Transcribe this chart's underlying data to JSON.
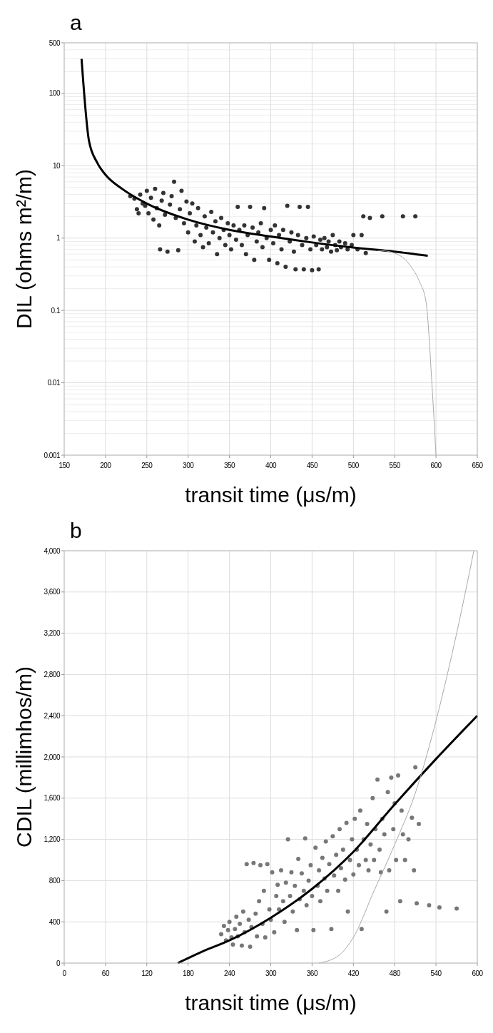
{
  "chart_data": [
    {
      "type": "scatter",
      "title": "a",
      "xlabel": "transit time (μs/m)",
      "ylabel": "DIL (ohms m²/m)",
      "log": "y",
      "grid": true,
      "xlim": [
        150,
        650
      ],
      "xticks": [
        150,
        200,
        250,
        300,
        350,
        400,
        450,
        500,
        550,
        600,
        650
      ],
      "ylim": [
        0.001,
        500
      ],
      "yticks": [
        0.001,
        0.01,
        0.1,
        1,
        10,
        100,
        500
      ],
      "series": [
        {
          "type": "scatter",
          "color": "#333333",
          "marker": "circle",
          "x": [
            230,
            235,
            238,
            240,
            242,
            245,
            248,
            250,
            252,
            255,
            258,
            260,
            262,
            265,
            266,
            268,
            270,
            272,
            275,
            278,
            280,
            283,
            285,
            288,
            290,
            292,
            295,
            298,
            300,
            302,
            305,
            308,
            310,
            312,
            315,
            318,
            320,
            322,
            325,
            328,
            330,
            333,
            335,
            338,
            340,
            343,
            345,
            348,
            350,
            352,
            355,
            358,
            360,
            362,
            365,
            368,
            370,
            372,
            375,
            378,
            380,
            383,
            385,
            388,
            390,
            392,
            395,
            398,
            400,
            403,
            405,
            408,
            410,
            413,
            415,
            418,
            420,
            423,
            425,
            428,
            430,
            433,
            435,
            438,
            440,
            443,
            445,
            448,
            450,
            452,
            455,
            458,
            460,
            462,
            465,
            468,
            470,
            473,
            475,
            478,
            480,
            483,
            485,
            490,
            493,
            498,
            500,
            505,
            510,
            512,
            515,
            520,
            535,
            560,
            575
          ],
          "values": [
            3.8,
            3.5,
            2.5,
            2.2,
            4,
            3,
            2.8,
            4.5,
            2.2,
            3.6,
            1.8,
            4.8,
            2.6,
            1.5,
            0.7,
            3.3,
            4.2,
            2.1,
            0.65,
            2.9,
            3.8,
            6,
            1.9,
            0.68,
            2.5,
            4.5,
            1.6,
            3.2,
            1.2,
            2.2,
            3,
            0.9,
            1.5,
            2.6,
            1.1,
            0.75,
            2,
            1.4,
            0.85,
            2.3,
            1.2,
            1.7,
            0.6,
            1,
            1.9,
            1.3,
            0.8,
            1.6,
            1.1,
            0.7,
            1.5,
            0.95,
            2.7,
            1.3,
            0.8,
            1.5,
            0.6,
            1.1,
            2.7,
            1.4,
            0.5,
            0.9,
            1.2,
            1.6,
            0.75,
            2.6,
            1,
            0.5,
            1.3,
            0.85,
            1.5,
            0.45,
            1.1,
            0.7,
            1.3,
            0.4,
            2.8,
            0.9,
            1.2,
            0.65,
            0.37,
            1.1,
            2.7,
            0.8,
            0.37,
            1,
            2.7,
            0.7,
            0.36,
            1.05,
            0.8,
            0.37,
            0.95,
            0.7,
            1,
            0.75,
            0.9,
            0.65,
            1.1,
            0.8,
            0.68,
            0.9,
            0.75,
            0.85,
            0.7,
            0.8,
            1.1,
            0.7,
            1.1,
            2,
            0.62,
            1.9,
            2,
            2,
            2
          ]
        },
        {
          "type": "line",
          "color": "#000000",
          "x": [
            171,
            180,
            190,
            200,
            220,
            250,
            300,
            350,
            400,
            450,
            500,
            550,
            590
          ],
          "values": [
            300,
            22,
            11,
            7.5,
            4.8,
            3,
            1.8,
            1.3,
            1.05,
            0.87,
            0.74,
            0.65,
            0.57
          ]
        },
        {
          "type": "line",
          "color": "#aaaaaa",
          "x": [
            530,
            550,
            570,
            580,
            588,
            595,
            600
          ],
          "values": [
            0.68,
            0.62,
            0.4,
            0.25,
            0.13,
            0.01,
            0.001
          ]
        }
      ]
    },
    {
      "type": "scatter",
      "title": "b",
      "xlabel": "transit time (μs/m)",
      "ylabel": "CDIL (millimhos/m)",
      "grid": true,
      "xlim": [
        0,
        600
      ],
      "xticks": [
        0,
        60,
        120,
        180,
        240,
        300,
        360,
        420,
        480,
        540,
        600
      ],
      "ylim": [
        0,
        4000
      ],
      "yticks": [
        0,
        400,
        800,
        {
          "value": 1200,
          "label": "1,200"
        },
        {
          "value": 1600,
          "label": "1,600"
        },
        {
          "value": 2000,
          "label": "2,000"
        },
        {
          "value": 2400,
          "label": "2,400"
        },
        {
          "value": 2800,
          "label": "2,800"
        },
        {
          "value": 3200,
          "label": "3,200"
        },
        {
          "value": 3600,
          "label": "3,600"
        },
        {
          "value": 4000,
          "label": "4,000"
        }
      ],
      "series": [
        {
          "type": "scatter",
          "color": "#777777",
          "marker": "circle",
          "x": [
            228,
            232,
            235,
            238,
            240,
            243,
            245,
            248,
            250,
            252,
            255,
            258,
            260,
            262,
            265,
            268,
            270,
            272,
            275,
            278,
            280,
            283,
            285,
            288,
            290,
            292,
            295,
            298,
            300,
            302,
            305,
            308,
            310,
            312,
            315,
            318,
            320,
            322,
            325,
            328,
            330,
            332,
            335,
            338,
            340,
            342,
            345,
            348,
            350,
            352,
            355,
            358,
            360,
            362,
            365,
            368,
            370,
            372,
            375,
            378,
            380,
            382,
            385,
            388,
            390,
            392,
            395,
            398,
            400,
            402,
            405,
            408,
            410,
            412,
            415,
            418,
            420,
            422,
            425,
            428,
            430,
            432,
            435,
            438,
            440,
            442,
            445,
            448,
            450,
            452,
            455,
            458,
            460,
            462,
            465,
            468,
            470,
            472,
            475,
            478,
            480,
            482,
            485,
            488,
            490,
            492,
            495,
            500,
            505,
            508,
            510,
            512,
            515,
            530,
            545,
            570
          ],
          "values": [
            280,
            360,
            220,
            320,
            400,
            250,
            180,
            330,
            450,
            260,
            380,
            170,
            500,
            300,
            960,
            420,
            160,
            350,
            970,
            480,
            260,
            600,
            950,
            380,
            700,
            250,
            960,
            520,
            420,
            880,
            300,
            650,
            760,
            520,
            900,
            600,
            400,
            780,
            1200,
            650,
            880,
            500,
            750,
            320,
            1010,
            620,
            870,
            700,
            1210,
            560,
            800,
            950,
            650,
            320,
            1120,
            750,
            900,
            600,
            1020,
            820,
            1180,
            700,
            960,
            330,
            1230,
            850,
            1050,
            700,
            1300,
            920,
            1100,
            810,
            1360,
            500,
            1000,
            1200,
            860,
            1400,
            1100,
            950,
            1480,
            330,
            1200,
            1000,
            1350,
            900,
            1150,
            1600,
            1000,
            1300,
            1780,
            1100,
            880,
            1400,
            1250,
            500,
            1660,
            900,
            1800,
            1300,
            1550,
            1000,
            1820,
            600,
            1480,
            1250,
            1000,
            1200,
            1410,
            900,
            1900,
            580,
            1350,
            560,
            540,
            530
          ]
        },
        {
          "type": "line",
          "color": "#000000",
          "x": [
            165,
            200,
            240,
            300,
            360,
            420,
            480,
            540,
            600
          ],
          "values": [
            0,
            110,
            220,
            440,
            720,
            1080,
            1540,
            1980,
            2400
          ]
        },
        {
          "type": "line",
          "color": "#aaaaaa",
          "x": [
            370,
            400,
            420,
            450,
            480,
            510,
            540,
            570,
            595
          ],
          "values": [
            0,
            80,
            250,
            700,
            1150,
            1650,
            2350,
            3200,
            4000
          ]
        }
      ]
    }
  ]
}
